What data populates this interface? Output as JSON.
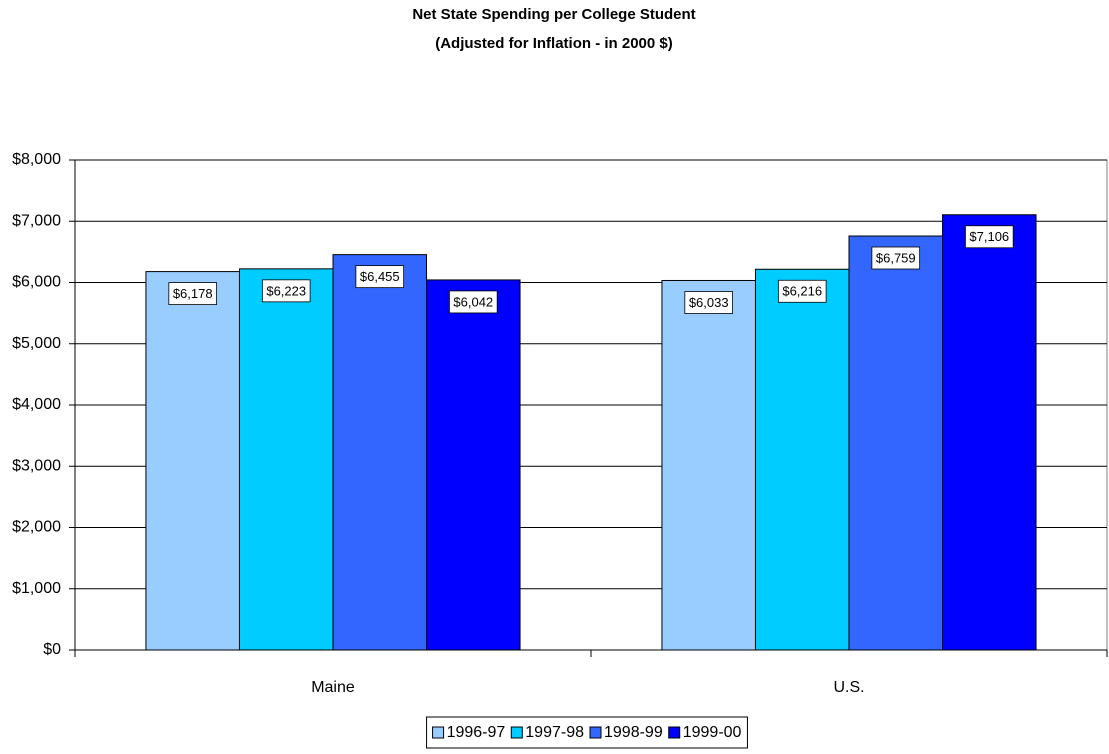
{
  "chart_data": {
    "type": "bar",
    "title": "Net State Spending per College Student",
    "subtitle": "(Adjusted for Inflation - in 2000 $)",
    "categories": [
      "Maine",
      "U.S."
    ],
    "series": [
      {
        "name": "1996-97",
        "color": "#99ccff",
        "values": [
          6178,
          6033
        ],
        "value_labels": [
          "$6,178",
          "$6,033"
        ]
      },
      {
        "name": "1997-98",
        "color": "#00ccff",
        "values": [
          6223,
          6216
        ],
        "value_labels": [
          "$6,223",
          "$6,216"
        ]
      },
      {
        "name": "1998-99",
        "color": "#3366ff",
        "values": [
          6455,
          6759
        ],
        "value_labels": [
          "$6,455",
          "$6,759"
        ]
      },
      {
        "name": "1999-00",
        "color": "#0000ff",
        "values": [
          6042,
          7106
        ],
        "value_labels": [
          "$6,042",
          "$7,106"
        ]
      }
    ],
    "ylim": [
      0,
      8000
    ],
    "yticks": [
      {
        "value": 0,
        "label": "$0"
      },
      {
        "value": 1000,
        "label": "$1,000"
      },
      {
        "value": 2000,
        "label": "$2,000"
      },
      {
        "value": 3000,
        "label": "$3,000"
      },
      {
        "value": 4000,
        "label": "$4,000"
      },
      {
        "value": 5000,
        "label": "$5,000"
      },
      {
        "value": 6000,
        "label": "$6,000"
      },
      {
        "value": 7000,
        "label": "$7,000"
      },
      {
        "value": 8000,
        "label": "$8,000"
      }
    ],
    "grid": true,
    "legend": "bottom"
  }
}
